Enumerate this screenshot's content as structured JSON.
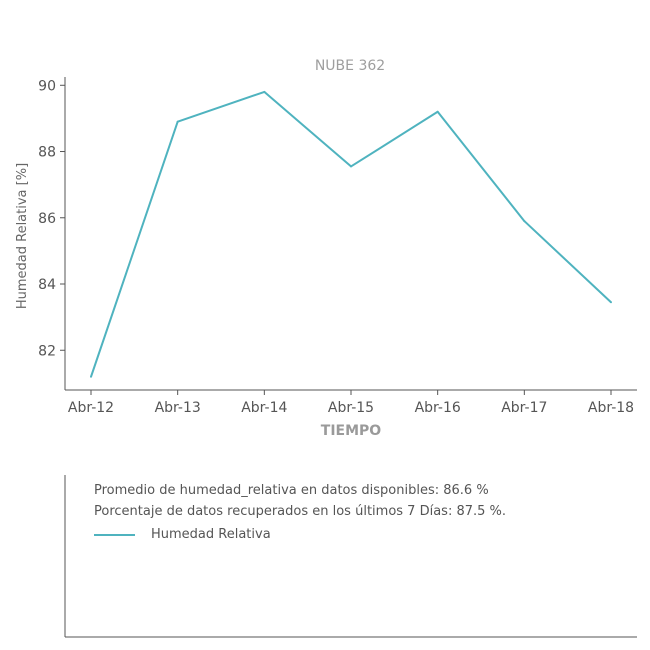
{
  "chart_data": {
    "type": "line",
    "title": "NUBE 362",
    "xlabel": "TIEMPO",
    "ylabel": "Humedad Relativa [%]",
    "categories": [
      "Abr-12",
      "Abr-13",
      "Abr-14",
      "Abr-15",
      "Abr-16",
      "Abr-17",
      "Abr-18"
    ],
    "yticks": [
      82,
      84,
      86,
      88,
      90
    ],
    "ylim": [
      80.8,
      90.25
    ],
    "grid": false,
    "series": [
      {
        "name": "Humedad Relativa",
        "color": "#4fb3bf",
        "values": [
          81.2,
          88.9,
          89.8,
          87.55,
          89.2,
          85.9,
          83.45
        ]
      }
    ]
  },
  "info": {
    "line1": "Promedio de humedad_relativa en datos disponibles: 86.6 %",
    "line2": "Porcentaje de datos recuperados en los últimos 7 Días: 87.5 %.",
    "legend_label": "Humedad Relativa"
  }
}
